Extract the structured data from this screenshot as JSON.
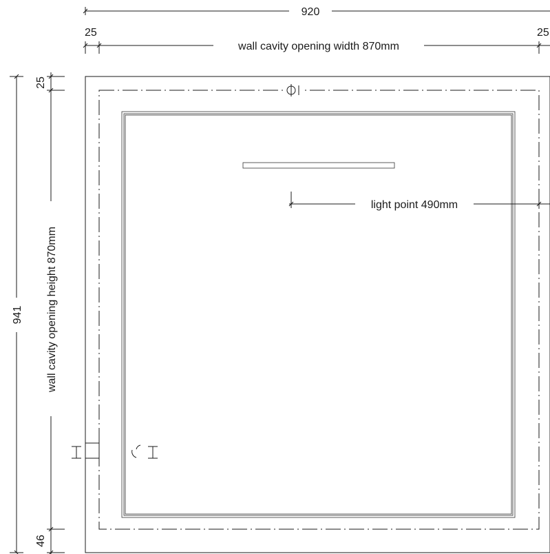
{
  "dimensions": {
    "overall_width": "920",
    "left_margin": "25",
    "right_margin": "25",
    "cavity_width": "wall cavity opening width 870mm",
    "overall_height": "941",
    "top_margin": "25",
    "bottom_margin": "46",
    "cavity_height": "wall cavity opening height 870mm",
    "light_point": "light point 490mm"
  },
  "symbols": {
    "top_symbol": "light-point-icon",
    "left_symbol": "switch-box-icon",
    "side_symbol": "sensor-icon"
  }
}
